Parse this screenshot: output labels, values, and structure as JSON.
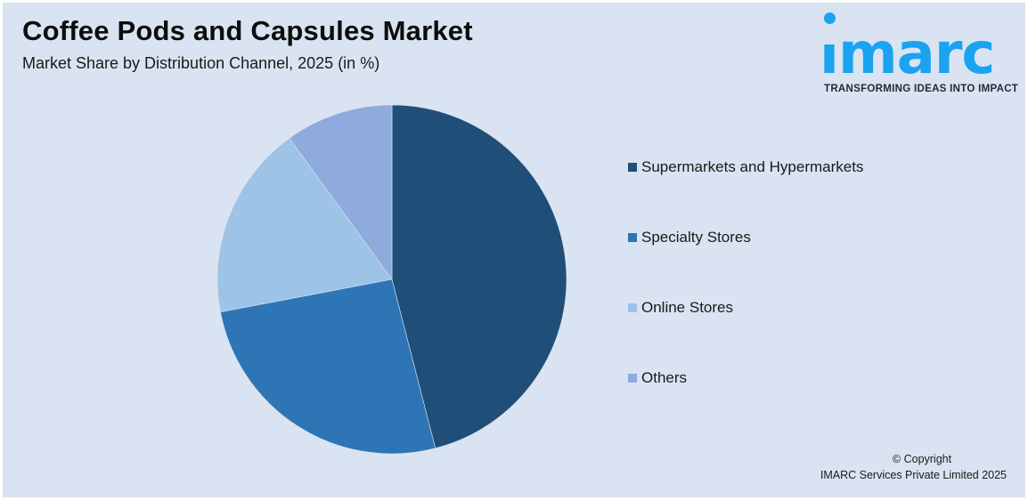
{
  "header": {
    "title": "Coffee Pods and Capsules Market",
    "subtitle": "Market Share by Distribution Channel, 2025 (in %)"
  },
  "logo": {
    "wordmark": "imarc",
    "tagline": "TRANSFORMING IDEAS INTO IMPACT",
    "color": "#1aa3f0"
  },
  "legend": {
    "items": [
      {
        "label": "Supermarkets and Hypermarkets",
        "color": "#1f4e79"
      },
      {
        "label": "Specialty Stores",
        "color": "#2e75b6"
      },
      {
        "label": "Online Stores",
        "color": "#9dc3e6"
      },
      {
        "label": "Others",
        "color": "#8faadc"
      }
    ]
  },
  "footer": {
    "line1": "© Copyright",
    "line2": "IMARC Services Private Limited 2025"
  },
  "chart_data": {
    "type": "pie",
    "title": "Coffee Pods and Capsules Market",
    "subtitle": "Market Share by Distribution Channel, 2025 (in %)",
    "categories": [
      "Supermarkets and Hypermarkets",
      "Specialty Stores",
      "Online Stores",
      "Others"
    ],
    "values": [
      46,
      26,
      18,
      10
    ],
    "colors": [
      "#1f4e79",
      "#2e75b6",
      "#9dc3e6",
      "#8faadc"
    ],
    "start_angle": "12 o'clock, clockwise",
    "data_labels": false,
    "legend_position": "right"
  }
}
